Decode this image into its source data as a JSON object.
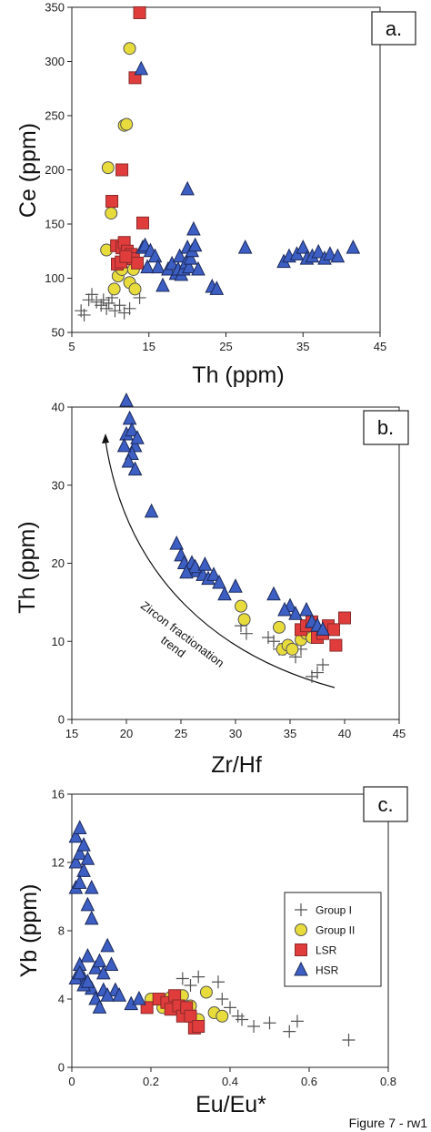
{
  "figure_caption": "Figure 7 - rw1",
  "styles": {
    "group_i": {
      "shape": "plus",
      "stroke": "#555555"
    },
    "group_ii": {
      "shape": "circle",
      "fill": "#e8dc3c",
      "stroke": "#555555"
    },
    "lsr": {
      "shape": "square",
      "fill": "#e03c3c",
      "stroke": "#8a2a2a"
    },
    "hsr": {
      "shape": "triangle",
      "fill": "#3d5fc4",
      "stroke": "#1c2a5a"
    }
  },
  "legend": {
    "entries": [
      {
        "label": "Group I",
        "key": "group_i"
      },
      {
        "label": "Group II",
        "key": "group_ii"
      },
      {
        "label": "LSR",
        "key": "lsr"
      },
      {
        "label": "HSR",
        "key": "hsr"
      }
    ]
  },
  "chart_data": [
    {
      "id": "a",
      "panel_label": "a.",
      "type": "scatter",
      "xlabel": "Th (ppm)",
      "ylabel": "Ce (ppm)",
      "xlim": [
        5,
        45
      ],
      "ylim": [
        50,
        350
      ],
      "xticks": [
        5,
        15,
        25,
        35,
        45
      ],
      "yticks": [
        50,
        100,
        150,
        200,
        250,
        300,
        350
      ],
      "series": {
        "group_i": [
          [
            6.2,
            70
          ],
          [
            6.6,
            66
          ],
          [
            7.2,
            80
          ],
          [
            7.6,
            85
          ],
          [
            8.2,
            78
          ],
          [
            8.8,
            75
          ],
          [
            9.1,
            80
          ],
          [
            9.5,
            72
          ],
          [
            9.8,
            77
          ],
          [
            10.2,
            82
          ],
          [
            10.6,
            70
          ],
          [
            11.2,
            75
          ],
          [
            11.8,
            68
          ],
          [
            12.5,
            72
          ],
          [
            13.8,
            82
          ]
        ],
        "group_ii": [
          [
            9.7,
            202
          ],
          [
            10.1,
            160
          ],
          [
            9.5,
            126
          ],
          [
            10.5,
            90
          ],
          [
            11.0,
            102
          ],
          [
            11.5,
            108
          ],
          [
            11.8,
            241
          ],
          [
            12.1,
            242
          ],
          [
            12.5,
            312
          ],
          [
            12.5,
            96
          ],
          [
            13.0,
            108
          ],
          [
            13.2,
            90
          ]
        ],
        "lsr": [
          [
            13.8,
            345
          ],
          [
            13.2,
            285
          ],
          [
            11.5,
            200
          ],
          [
            10.2,
            171
          ],
          [
            14.2,
            151
          ],
          [
            10.8,
            130
          ],
          [
            11.5,
            128
          ],
          [
            11.8,
            133
          ],
          [
            12.2,
            125
          ],
          [
            12.7,
            122
          ],
          [
            13.0,
            118
          ],
          [
            13.5,
            114
          ],
          [
            10.9,
            113
          ],
          [
            11.4,
            115
          ],
          [
            12.0,
            120
          ]
        ],
        "hsr": [
          [
            14.0,
            293
          ],
          [
            14.2,
            128
          ],
          [
            14.5,
            130
          ],
          [
            14.8,
            110
          ],
          [
            15.2,
            125
          ],
          [
            15.8,
            120
          ],
          [
            16.2,
            110
          ],
          [
            16.8,
            93
          ],
          [
            17.5,
            108
          ],
          [
            18.0,
            113
          ],
          [
            18.5,
            104
          ],
          [
            18.8,
            108
          ],
          [
            19.0,
            120
          ],
          [
            19.2,
            103
          ],
          [
            19.5,
            108
          ],
          [
            19.8,
            114
          ],
          [
            20.0,
            128
          ],
          [
            20.0,
            182
          ],
          [
            20.2,
            110
          ],
          [
            20.4,
            118
          ],
          [
            20.6,
            125
          ],
          [
            20.8,
            145
          ],
          [
            21.0,
            130
          ],
          [
            21.4,
            108
          ],
          [
            23.2,
            92
          ],
          [
            23.8,
            90
          ],
          [
            27.5,
            128
          ],
          [
            32.5,
            115
          ],
          [
            33.2,
            120
          ],
          [
            34.2,
            122
          ],
          [
            35.0,
            128
          ],
          [
            35.5,
            118
          ],
          [
            36.2,
            120
          ],
          [
            37.0,
            124
          ],
          [
            37.8,
            118
          ],
          [
            38.5,
            122
          ],
          [
            39.5,
            120
          ],
          [
            41.5,
            128
          ]
        ]
      }
    },
    {
      "id": "b",
      "panel_label": "b.",
      "type": "scatter",
      "xlabel": "Zr/Hf",
      "ylabel": "Th (ppm)",
      "xlim": [
        15,
        45
      ],
      "ylim": [
        0,
        40
      ],
      "xticks": [
        15,
        20,
        25,
        30,
        35,
        40,
        45
      ],
      "yticks": [
        0,
        10,
        20,
        30,
        40
      ],
      "annotations": [
        "Zircon fractionation",
        "trend"
      ],
      "series": {
        "group_i": [
          [
            30.5,
            12
          ],
          [
            31.0,
            11
          ],
          [
            33.0,
            10.5
          ],
          [
            33.5,
            10
          ],
          [
            34.0,
            9
          ],
          [
            34.5,
            9
          ],
          [
            35.5,
            8
          ],
          [
            36.0,
            9
          ],
          [
            37.0,
            5.5
          ],
          [
            37.5,
            6
          ],
          [
            38.0,
            7
          ]
        ],
        "group_ii": [
          [
            30.5,
            14.5
          ],
          [
            30.8,
            12.8
          ],
          [
            34.0,
            11.8
          ],
          [
            34.3,
            9
          ],
          [
            34.8,
            9.5
          ],
          [
            35.2,
            9
          ],
          [
            36.0,
            10.2
          ],
          [
            36.5,
            11
          ],
          [
            37.0,
            10.5
          ]
        ],
        "lsr": [
          [
            36.0,
            11.5
          ],
          [
            36.5,
            12
          ],
          [
            37.0,
            12.5
          ],
          [
            37.5,
            10.5
          ],
          [
            38.0,
            11
          ],
          [
            38.5,
            12
          ],
          [
            39.0,
            11.5
          ],
          [
            39.2,
            9.5
          ],
          [
            40.0,
            13
          ]
        ],
        "hsr": [
          [
            20.0,
            40.8
          ],
          [
            20.0,
            36.5
          ],
          [
            20.3,
            38.5
          ],
          [
            20.5,
            37
          ],
          [
            20.8,
            35
          ],
          [
            20.5,
            34
          ],
          [
            20.2,
            33
          ],
          [
            20.8,
            32
          ],
          [
            21.0,
            36
          ],
          [
            19.8,
            35
          ],
          [
            22.3,
            26.6
          ],
          [
            24.6,
            22.5
          ],
          [
            25.0,
            21
          ],
          [
            25.3,
            20
          ],
          [
            25.8,
            19
          ],
          [
            26.0,
            20
          ],
          [
            26.5,
            19
          ],
          [
            27.0,
            18.5
          ],
          [
            27.5,
            18
          ],
          [
            28.0,
            18.5
          ],
          [
            28.5,
            17.5
          ],
          [
            26.3,
            19.5
          ],
          [
            25.5,
            18.8
          ],
          [
            27.2,
            19.8
          ],
          [
            29.0,
            16
          ],
          [
            30.0,
            17
          ],
          [
            33.5,
            16
          ],
          [
            35.0,
            14.5
          ],
          [
            35.5,
            13.5
          ],
          [
            36.5,
            14
          ],
          [
            37.0,
            12.5
          ],
          [
            37.5,
            12
          ],
          [
            38.0,
            11.5
          ],
          [
            34.5,
            14
          ]
        ]
      }
    },
    {
      "id": "c",
      "panel_label": "c.",
      "type": "scatter",
      "xlabel": "Eu/Eu*",
      "ylabel": "Yb (ppm)",
      "xlim": [
        0,
        0.8
      ],
      "ylim": [
        0,
        16
      ],
      "xticks": [
        0,
        0.2,
        0.4,
        0.6,
        0.8
      ],
      "xticklabels": [
        "0",
        "0.2",
        "0.4",
        "0.6",
        "0.8"
      ],
      "yticks": [
        0,
        4,
        8,
        12,
        16
      ],
      "series": {
        "group_i": [
          [
            0.28,
            5.2
          ],
          [
            0.3,
            4.8
          ],
          [
            0.32,
            5.3
          ],
          [
            0.37,
            5
          ],
          [
            0.38,
            4.0
          ],
          [
            0.4,
            3.5
          ],
          [
            0.42,
            3.0
          ],
          [
            0.43,
            2.8
          ],
          [
            0.46,
            2.4
          ],
          [
            0.5,
            2.6
          ],
          [
            0.55,
            2.1
          ],
          [
            0.57,
            2.7
          ],
          [
            0.7,
            1.6
          ]
        ],
        "group_ii": [
          [
            0.2,
            4.0
          ],
          [
            0.23,
            3.5
          ],
          [
            0.26,
            3.8
          ],
          [
            0.28,
            4.2
          ],
          [
            0.3,
            3.6
          ],
          [
            0.32,
            2.8
          ],
          [
            0.34,
            4.4
          ],
          [
            0.36,
            3.2
          ],
          [
            0.38,
            3.0
          ],
          [
            0.25,
            4.1
          ]
        ],
        "lsr": [
          [
            0.19,
            3.5
          ],
          [
            0.22,
            4.0
          ],
          [
            0.24,
            3.8
          ],
          [
            0.25,
            3.4
          ],
          [
            0.26,
            4.2
          ],
          [
            0.27,
            3.6
          ],
          [
            0.28,
            3.0
          ],
          [
            0.29,
            3.5
          ],
          [
            0.3,
            3.0
          ],
          [
            0.31,
            2.3
          ],
          [
            0.32,
            2.4
          ]
        ],
        "hsr": [
          [
            0.01,
            13.5
          ],
          [
            0.01,
            12.0
          ],
          [
            0.02,
            14.0
          ],
          [
            0.02,
            12.5
          ],
          [
            0.03,
            11.5
          ],
          [
            0.01,
            10.5
          ],
          [
            0.02,
            10.8
          ],
          [
            0.03,
            13
          ],
          [
            0.04,
            12.2
          ],
          [
            0.05,
            10.5
          ],
          [
            0.04,
            9.5
          ],
          [
            0.05,
            8.7
          ],
          [
            0.02,
            6.0
          ],
          [
            0.03,
            5.2
          ],
          [
            0.04,
            6.5
          ],
          [
            0.06,
            5.8
          ],
          [
            0.07,
            6.2
          ],
          [
            0.08,
            5.5
          ],
          [
            0.09,
            7.1
          ],
          [
            0.1,
            6.0
          ],
          [
            0.11,
            4.5
          ],
          [
            0.12,
            4.2
          ],
          [
            0.05,
            4.6
          ],
          [
            0.06,
            4.0
          ],
          [
            0.07,
            3.5
          ],
          [
            0.15,
            3.7
          ],
          [
            0.17,
            4.0
          ],
          [
            0.01,
            5.2
          ],
          [
            0.02,
            5.5
          ],
          [
            0.03,
            4.8
          ],
          [
            0.04,
            5.0
          ],
          [
            0.08,
            4.5
          ],
          [
            0.09,
            4.2
          ]
        ]
      }
    }
  ]
}
